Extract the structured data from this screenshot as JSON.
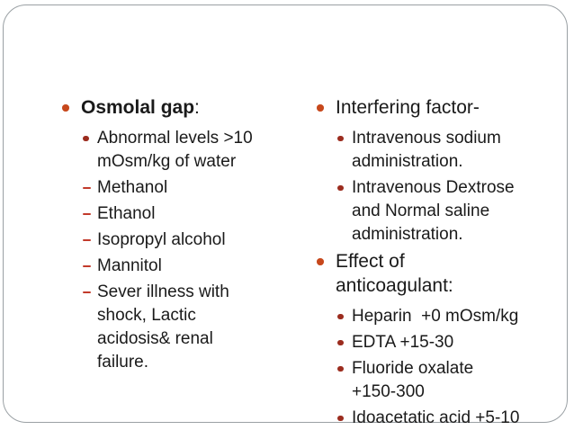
{
  "slide": {
    "background_color": "#ffffff",
    "border_color": "#9aa0a4"
  },
  "colors": {
    "level1_bullet": "#c7481c",
    "level2_bullet": "#9b2c1e",
    "dash_bullet": "#c23a2b",
    "text": "#1a1a1a"
  },
  "icons": {
    "level1_bullet": "filled-circle",
    "level2_bullet": "filled-circle",
    "dash_bullet": "dash"
  },
  "left_column": {
    "heading_bold": "Osmolal gap",
    "heading_suffix": ":",
    "items": [
      {
        "marker": "circle",
        "text": "Abnormal levels >10\nmOsm/kg of water"
      },
      {
        "marker": "dash",
        "text": "Methanol"
      },
      {
        "marker": "dash",
        "text": "Ethanol"
      },
      {
        "marker": "dash",
        "text": "Isopropyl alcohol"
      },
      {
        "marker": "dash",
        "text": "Mannitol"
      },
      {
        "marker": "dash",
        "text": "Sever illness with\nshock, Lactic\nacidosis& renal\nfailure."
      }
    ]
  },
  "right_column": {
    "sections": [
      {
        "heading": "Interfering factor-",
        "items": [
          {
            "marker": "circle",
            "text": "Intravenous sodium\nadministration."
          },
          {
            "marker": "circle",
            "text": "Intravenous Dextrose\nand Normal saline\nadministration."
          }
        ]
      },
      {
        "heading": "Effect of\nanticoagulant:",
        "items": [
          {
            "marker": "circle",
            "text": "Heparin  +0 mOsm/kg"
          },
          {
            "marker": "circle",
            "text": "EDTA +15-30"
          },
          {
            "marker": "circle",
            "text": "Fluoride oxalate\n+150-300"
          },
          {
            "marker": "circle",
            "text": "Idoacetatic acid +5-10"
          }
        ]
      }
    ]
  }
}
